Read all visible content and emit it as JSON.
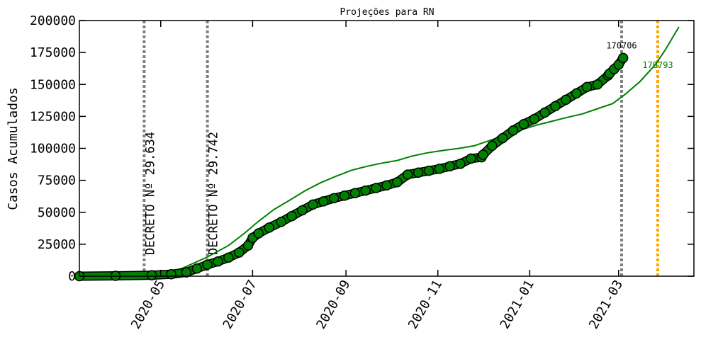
{
  "chart_data": {
    "type": "line",
    "title": "Projeções para RN",
    "xlabel": "",
    "ylabel": "Casos Acumulados",
    "xlim": [
      "2020-03-08",
      "2021-04-20"
    ],
    "ylim": [
      0,
      200000
    ],
    "y_ticks": [
      0,
      25000,
      50000,
      75000,
      100000,
      125000,
      150000,
      175000,
      200000
    ],
    "y_tick_labels": [
      "0",
      "25000",
      "50000",
      "75000",
      "100000",
      "125000",
      "150000",
      "175000",
      "200000"
    ],
    "x_ticks": [
      "2020-05-01",
      "2020-07-01",
      "2020-09-01",
      "2020-11-01",
      "2021-01-01",
      "2021-03-01"
    ],
    "x_tick_labels": [
      "2020-05",
      "2020-07",
      "2020-09",
      "2020-11",
      "2021-01",
      "2021-03"
    ],
    "grid": false,
    "series": [
      {
        "kind": "observed",
        "color": "#008000",
        "x": [
          "2020-03-08",
          "2020-04-01",
          "2020-04-25",
          "2020-05-08",
          "2020-05-18",
          "2020-05-25",
          "2020-06-01",
          "2020-06-08",
          "2020-06-15",
          "2020-06-22",
          "2020-06-28",
          "2020-07-01",
          "2020-07-05",
          "2020-07-12",
          "2020-07-20",
          "2020-07-27",
          "2020-08-03",
          "2020-08-10",
          "2020-08-17",
          "2020-08-24",
          "2020-08-31",
          "2020-09-07",
          "2020-09-14",
          "2020-09-21",
          "2020-09-28",
          "2020-10-05",
          "2020-10-12",
          "2020-10-19",
          "2020-10-26",
          "2020-11-02",
          "2020-11-09",
          "2020-11-16",
          "2020-11-23",
          "2020-11-30",
          "2020-12-01",
          "2020-12-07",
          "2020-12-14",
          "2020-12-21",
          "2020-12-28",
          "2021-01-04",
          "2021-01-11",
          "2021-01-18",
          "2021-01-25",
          "2021-02-01",
          "2021-02-08",
          "2021-02-15",
          "2021-02-22",
          "2021-02-23",
          "2021-02-26",
          "2021-03-01",
          "2021-03-04"
        ],
        "y": [
          0,
          300,
          800,
          1500,
          3000,
          6000,
          9000,
          11500,
          14500,
          18500,
          24000,
          30000,
          33500,
          38000,
          42500,
          47000,
          51500,
          56000,
          58500,
          61000,
          63000,
          65000,
          67000,
          69000,
          71000,
          73500,
          79500,
          81000,
          82500,
          84000,
          86000,
          88000,
          92000,
          93000,
          95000,
          102000,
          108000,
          114000,
          119000,
          123000,
          128000,
          133000,
          138000,
          143000,
          148000,
          150000,
          157000,
          158500,
          162000,
          165500,
          170706
        ]
      },
      {
        "kind": "projection",
        "color": "#008000",
        "x": [
          "2020-03-08",
          "2020-04-15",
          "2020-05-01",
          "2020-05-15",
          "2020-06-01",
          "2020-06-15",
          "2020-06-25",
          "2020-07-05",
          "2020-07-15",
          "2020-07-25",
          "2020-08-05",
          "2020-08-15",
          "2020-08-25",
          "2020-09-05",
          "2020-09-15",
          "2020-09-25",
          "2020-10-05",
          "2020-10-15",
          "2020-10-25",
          "2020-11-05",
          "2020-11-15",
          "2020-11-25",
          "2020-12-05",
          "2020-12-15",
          "2020-12-25",
          "2021-01-05",
          "2021-01-15",
          "2021-01-25",
          "2021-02-05",
          "2021-02-15",
          "2021-02-25",
          "2021-03-05",
          "2021-03-15",
          "2021-03-25",
          "2021-04-01",
          "2021-04-10"
        ],
        "y": [
          0,
          500,
          2000,
          6000,
          15000,
          24000,
          33000,
          43000,
          52000,
          59000,
          67000,
          73000,
          78000,
          83000,
          86000,
          88500,
          90500,
          94000,
          96500,
          98500,
          100000,
          102000,
          106000,
          110000,
          114000,
          118000,
          121000,
          124000,
          127000,
          131000,
          135000,
          142000,
          152000,
          165000,
          177000,
          195000
        ]
      }
    ],
    "vlines": [
      {
        "date": "2020-04-20",
        "label": "DECRETO Nº 29.634",
        "color": "#808080"
      },
      {
        "date": "2020-06-01",
        "label": "DECRETO Nº 29.742",
        "color": "#808080"
      },
      {
        "date": "2021-03-03",
        "label": "",
        "color": "#808080"
      },
      {
        "date": "2021-03-27",
        "label": "",
        "color": "#ffa500"
      }
    ],
    "annotations": [
      {
        "text": "170706",
        "x": "2021-03-03",
        "y": 178000,
        "color": "#000000"
      },
      {
        "text": "170793",
        "x": "2021-03-27",
        "y": 163000,
        "color": "#008000"
      }
    ]
  }
}
